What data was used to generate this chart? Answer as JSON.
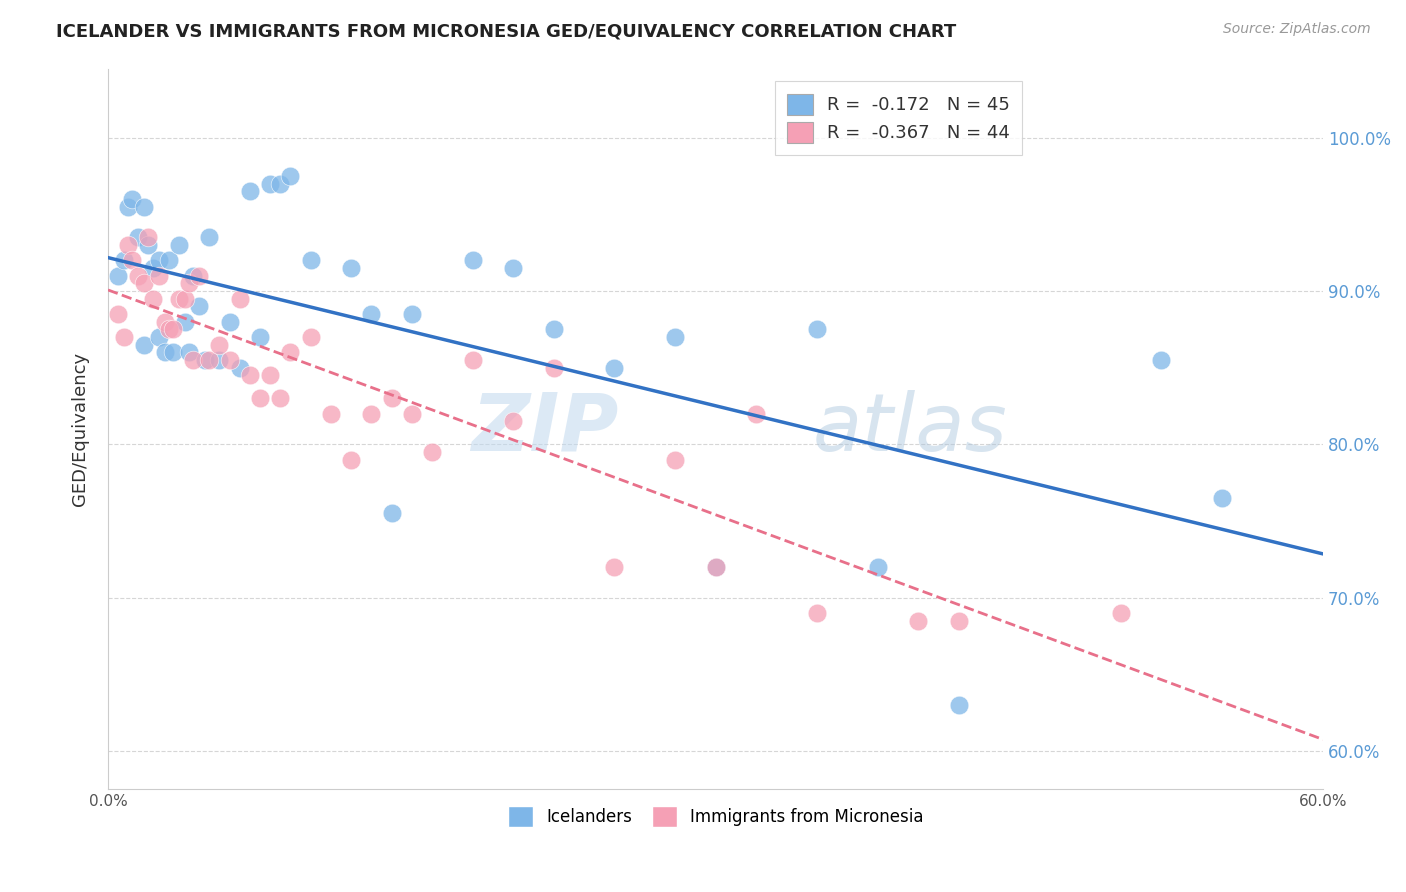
{
  "title": "ICELANDER VS IMMIGRANTS FROM MICRONESIA GED/EQUIVALENCY CORRELATION CHART",
  "source": "Source: ZipAtlas.com",
  "ylabel": "GED/Equivalency",
  "watermark_zip": "ZIP",
  "watermark_atlas": "atlas",
  "legend_blue": {
    "r": -0.172,
    "n": 45,
    "label": "Icelanders"
  },
  "legend_pink": {
    "r": -0.367,
    "n": 44,
    "label": "Immigrants from Micronesia"
  },
  "x_tick_positions": [
    0.0,
    0.1,
    0.2,
    0.3,
    0.4,
    0.5,
    0.6
  ],
  "x_tick_labels": [
    "0.0%",
    "",
    "",
    "",
    "",
    "",
    "60.0%"
  ],
  "y_ticks": [
    0.6,
    0.7,
    0.8,
    0.9,
    1.0
  ],
  "y_tick_labels_right": [
    "60.0%",
    "70.0%",
    "80.0%",
    "90.0%",
    "100.0%"
  ],
  "xlim": [
    0.0,
    0.6
  ],
  "ylim": [
    0.575,
    1.045
  ],
  "blue_color": "#7EB6E8",
  "pink_color": "#F5A0B5",
  "blue_line_color": "#3272C4",
  "pink_line_color": "#E8708A",
  "grid_color": "#CCCCCC",
  "background_color": "#FFFFFF",
  "blue_scatter_x": [
    0.005,
    0.008,
    0.01,
    0.012,
    0.015,
    0.018,
    0.018,
    0.02,
    0.022,
    0.025,
    0.025,
    0.028,
    0.03,
    0.032,
    0.035,
    0.038,
    0.04,
    0.042,
    0.045,
    0.048,
    0.05,
    0.055,
    0.06,
    0.065,
    0.07,
    0.075,
    0.08,
    0.085,
    0.09,
    0.1,
    0.12,
    0.13,
    0.14,
    0.15,
    0.18,
    0.2,
    0.22,
    0.25,
    0.28,
    0.3,
    0.35,
    0.38,
    0.42,
    0.52,
    0.55
  ],
  "blue_scatter_y": [
    0.91,
    0.92,
    0.955,
    0.96,
    0.935,
    0.955,
    0.865,
    0.93,
    0.915,
    0.87,
    0.92,
    0.86,
    0.92,
    0.86,
    0.93,
    0.88,
    0.86,
    0.91,
    0.89,
    0.855,
    0.935,
    0.855,
    0.88,
    0.85,
    0.965,
    0.87,
    0.97,
    0.97,
    0.975,
    0.92,
    0.915,
    0.885,
    0.755,
    0.885,
    0.92,
    0.915,
    0.875,
    0.85,
    0.87,
    0.72,
    0.875,
    0.72,
    0.63,
    0.855,
    0.765
  ],
  "pink_scatter_x": [
    0.005,
    0.008,
    0.01,
    0.012,
    0.015,
    0.018,
    0.02,
    0.022,
    0.025,
    0.028,
    0.03,
    0.032,
    0.035,
    0.038,
    0.04,
    0.042,
    0.045,
    0.05,
    0.055,
    0.06,
    0.065,
    0.07,
    0.075,
    0.08,
    0.085,
    0.09,
    0.1,
    0.11,
    0.12,
    0.13,
    0.14,
    0.15,
    0.16,
    0.18,
    0.2,
    0.22,
    0.25,
    0.28,
    0.3,
    0.32,
    0.35,
    0.4,
    0.42,
    0.5
  ],
  "pink_scatter_y": [
    0.885,
    0.87,
    0.93,
    0.92,
    0.91,
    0.905,
    0.935,
    0.895,
    0.91,
    0.88,
    0.875,
    0.875,
    0.895,
    0.895,
    0.905,
    0.855,
    0.91,
    0.855,
    0.865,
    0.855,
    0.895,
    0.845,
    0.83,
    0.845,
    0.83,
    0.86,
    0.87,
    0.82,
    0.79,
    0.82,
    0.83,
    0.82,
    0.795,
    0.855,
    0.815,
    0.85,
    0.72,
    0.79,
    0.72,
    0.82,
    0.69,
    0.685,
    0.685,
    0.69
  ]
}
